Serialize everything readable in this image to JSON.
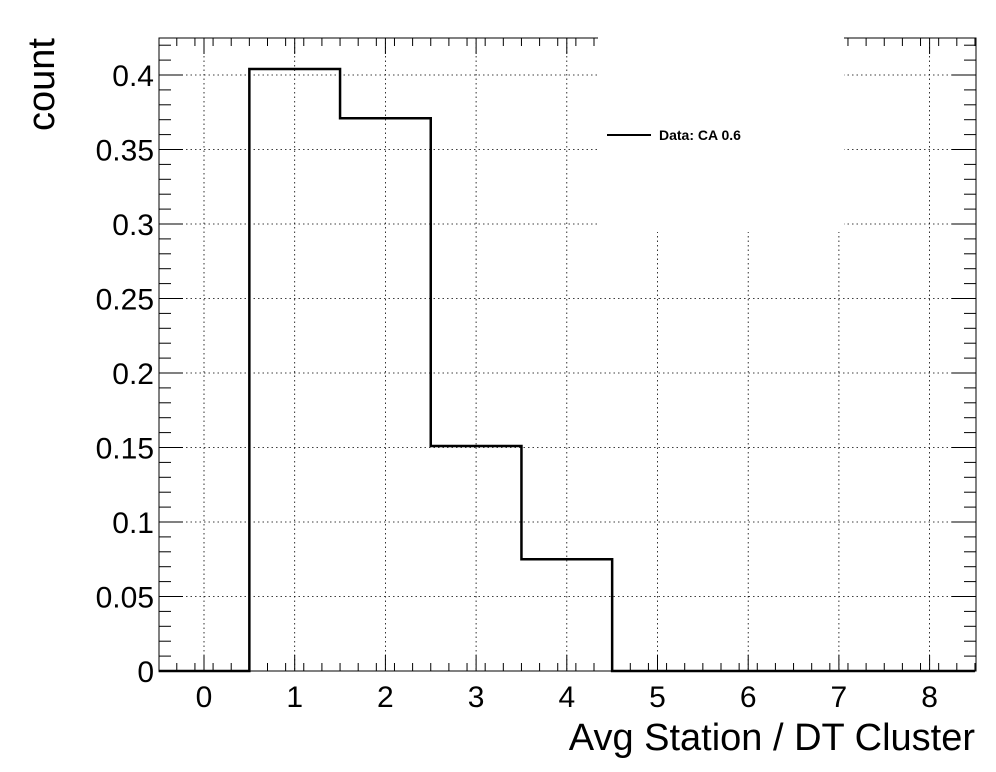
{
  "chart_data": {
    "type": "histogram",
    "title": "",
    "xlabel": "Avg Station / DT Cluster",
    "ylabel": "count",
    "xlim": [
      -0.5,
      8.5
    ],
    "ylim": [
      0,
      0.425
    ],
    "x_ticks": [
      0,
      1,
      2,
      3,
      4,
      5,
      6,
      7,
      8
    ],
    "y_ticks": [
      0,
      0.05,
      0.1,
      0.15,
      0.2,
      0.25,
      0.3,
      0.35,
      0.4
    ],
    "y_tick_labels": [
      "0",
      "0.05",
      "0.1",
      "0.15",
      "0.2",
      "0.25",
      "0.3",
      "0.35",
      "0.4"
    ],
    "grid": true,
    "legend_position": "top-right",
    "series": [
      {
        "name": "Data: CA 0.6",
        "color": "#000000",
        "bin_edges": [
          -0.5,
          0.5,
          1.5,
          2.5,
          3.5,
          4.5,
          5.5,
          6.5,
          7.5,
          8.5
        ],
        "values": [
          0,
          0.404,
          0.371,
          0.151,
          0.075,
          0,
          0,
          0,
          0
        ]
      }
    ]
  }
}
